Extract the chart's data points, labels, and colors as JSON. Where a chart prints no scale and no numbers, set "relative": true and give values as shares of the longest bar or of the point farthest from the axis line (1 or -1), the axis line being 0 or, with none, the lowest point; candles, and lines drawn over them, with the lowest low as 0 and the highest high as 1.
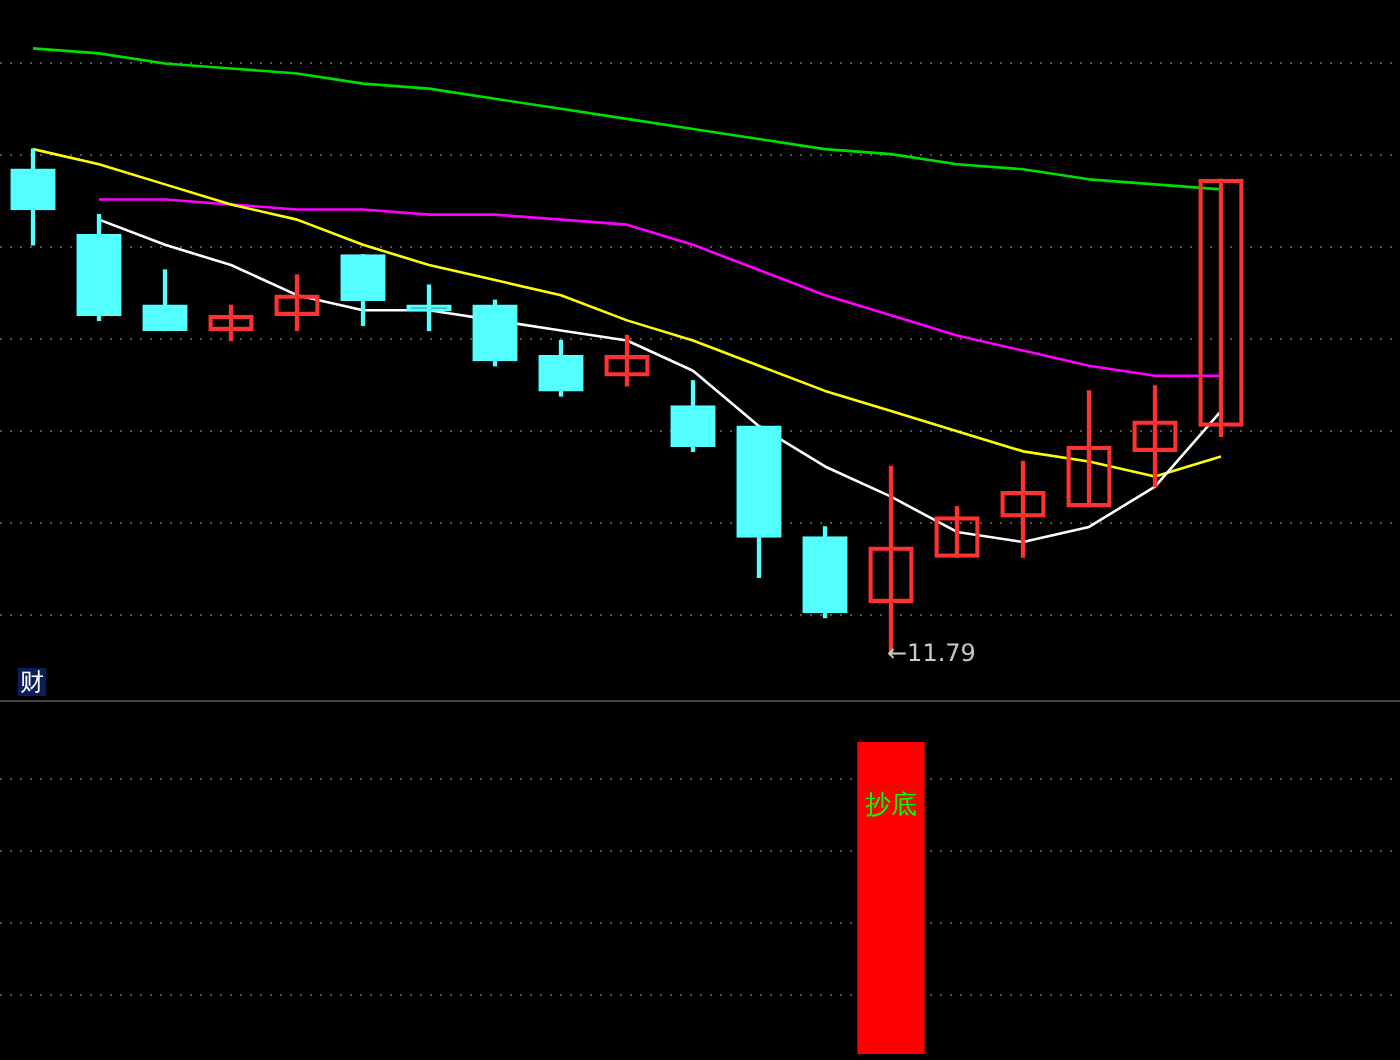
{
  "chart_data": [
    {
      "type": "candlestick",
      "relative": true,
      "grid": true,
      "marker": "none",
      "categories": [
        null,
        null,
        null,
        null,
        null,
        null,
        null,
        null,
        null,
        null,
        null,
        null,
        null,
        null,
        null,
        null,
        null,
        null,
        null
      ],
      "ohlc": [
        [
          0.96,
          1.0,
          0.81,
          0.88
        ],
        [
          0.83,
          0.87,
          0.66,
          0.67
        ],
        [
          0.69,
          0.76,
          0.64,
          0.64
        ],
        [
          0.64,
          0.69,
          0.62,
          0.67
        ],
        [
          0.67,
          0.75,
          0.64,
          0.71
        ],
        [
          0.79,
          0.79,
          0.65,
          0.7
        ],
        [
          0.69,
          0.73,
          0.64,
          0.68
        ],
        [
          0.69,
          0.7,
          0.57,
          0.58
        ],
        [
          0.59,
          0.62,
          0.51,
          0.52
        ],
        [
          0.55,
          0.63,
          0.53,
          0.59
        ],
        [
          0.49,
          0.54,
          0.4,
          0.41
        ],
        [
          0.45,
          0.45,
          0.15,
          0.23
        ],
        [
          0.23,
          0.25,
          0.07,
          0.08
        ],
        [
          0.1,
          0.37,
          0.0,
          0.21
        ],
        [
          0.19,
          0.29,
          0.19,
          0.27
        ],
        [
          0.27,
          0.38,
          0.19,
          0.32
        ],
        [
          0.29,
          0.52,
          0.29,
          0.41
        ],
        [
          0.4,
          0.53,
          0.33,
          0.46
        ],
        [
          0.45,
          0.94,
          0.43,
          0.94
        ]
      ],
      "colors": [
        "#54ffff",
        "#54ffff",
        "#54ffff",
        "#ff3232",
        "#ff3232",
        "#54ffff",
        "#54ffff",
        "#54ffff",
        "#54ffff",
        "#ff3232",
        "#54ffff",
        "#54ffff",
        "#54ffff",
        "#ff3232",
        "#ff3232",
        "#ff3232",
        "#ff3232",
        "#ff3232",
        "#ff3232"
      ],
      "series": [
        {
          "type": "line",
          "color": "#ffffff",
          "values": [
            null,
            0.86,
            0.81,
            0.77,
            0.71,
            0.68,
            0.68,
            null,
            0.64,
            0.62,
            0.56,
            0.45,
            0.37,
            0.31,
            0.24,
            0.22,
            0.25,
            0.33,
            0.48
          ]
        },
        {
          "type": "line",
          "color": "#ffff00",
          "values": [
            1.0,
            0.97,
            0.93,
            0.89,
            0.86,
            0.81,
            0.77,
            0.74,
            0.71,
            0.66,
            0.62,
            0.57,
            0.52,
            0.48,
            0.44,
            0.4,
            0.38,
            0.35,
            0.39
          ]
        },
        {
          "type": "line",
          "color": "#ff00ff",
          "values": [
            null,
            0.9,
            0.9,
            0.89,
            0.88,
            0.88,
            0.87,
            0.87,
            0.86,
            0.85,
            0.81,
            0.76,
            0.71,
            0.67,
            0.63,
            0.6,
            0.57,
            0.55,
            0.55
          ]
        },
        {
          "type": "line",
          "color": "#00e000",
          "values": [
            1.2,
            1.19,
            1.17,
            1.16,
            1.15,
            1.13,
            1.12,
            1.1,
            1.08,
            1.06,
            1.04,
            1.02,
            1.0,
            0.99,
            0.97,
            0.96,
            0.94,
            0.93,
            0.92
          ]
        }
      ],
      "annotations": [
        "←11.79",
        "财"
      ]
    },
    {
      "type": "bar",
      "relative": true,
      "grid": true,
      "categories": [
        null,
        null,
        null,
        null,
        null,
        null,
        null,
        null,
        null,
        null,
        null,
        null,
        null,
        null,
        null,
        null,
        null,
        null,
        null
      ],
      "values": [
        null,
        null,
        null,
        null,
        null,
        null,
        null,
        null,
        null,
        null,
        null,
        null,
        null,
        1,
        null,
        null,
        null,
        null,
        null
      ],
      "color": "#ff0000",
      "annotations": [
        {
          "text": "抄底",
          "y": 1
        }
      ]
    }
  ]
}
